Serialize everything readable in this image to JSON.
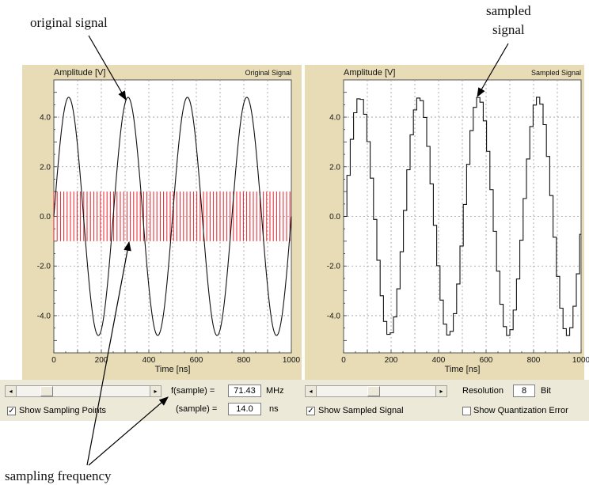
{
  "annotations": {
    "original_signal": "original signal",
    "sampled_signal_line1": "sampled",
    "sampled_signal_line2": "signal",
    "sampling_frequency": "sampling frequency"
  },
  "left_plot": {
    "y_axis_label": "Amplitude [V]",
    "title": "Original Signal",
    "x_axis_label": "Time [ns]",
    "y_ticks": [
      "4.0",
      "2.0",
      "0.0",
      "-2.0",
      "-4.0"
    ],
    "x_ticks": [
      "0",
      "200",
      "400",
      "600",
      "800",
      "1000"
    ]
  },
  "right_plot": {
    "y_axis_label": "Amplitude [V]",
    "title": "Sampled Signal",
    "x_axis_label": "Time [ns]",
    "y_ticks": [
      "4.0",
      "2.0",
      "0.0",
      "-2.0",
      "-4.0"
    ],
    "x_ticks": [
      "0",
      "200",
      "400",
      "600",
      "800",
      "1000"
    ]
  },
  "chart_data": [
    {
      "type": "line",
      "title": "Original Signal",
      "xlabel": "Time [ns]",
      "ylabel": "Amplitude [V]",
      "xlim": [
        0,
        1000
      ],
      "ylim": [
        -5.5,
        5.5
      ],
      "series": [
        {
          "amplitude": 4.8,
          "period_ns": 250
        }
      ],
      "sampling_points": {
        "interval_ns": 14.0,
        "amplitude": 1.0
      },
      "grid": true
    },
    {
      "type": "line",
      "title": "Sampled Signal",
      "xlabel": "Time [ns]",
      "ylabel": "Amplitude [V]",
      "xlim": [
        0,
        1000
      ],
      "ylim": [
        -5.5,
        5.5
      ],
      "series": [
        {
          "amplitude": 4.8,
          "period_ns": 250,
          "step_ns": 14.0
        }
      ],
      "grid": true
    }
  ],
  "controls": {
    "fsample_label": "f(sample) =",
    "fsample_value": "71.43",
    "fsample_unit": "MHz",
    "tsample_label": "(sample) =",
    "tsample_value": "14.0",
    "tsample_unit": "ns",
    "show_sampling_points": "Show Sampling Points",
    "show_sampled_signal": "Show Sampled Signal",
    "resolution_label": "Resolution",
    "resolution_value": "8",
    "resolution_unit": "Bit",
    "show_quant_error": "Show Quantization Error",
    "left_arrow": "◂",
    "right_arrow": "▸",
    "checkmark": "✓"
  },
  "colors": {
    "panel_bg": "#e8dcb6",
    "plot_bg": "#ffffff",
    "signal": "#111111",
    "sampling_points": "#e8202a",
    "grid": "#9a9a9a"
  }
}
